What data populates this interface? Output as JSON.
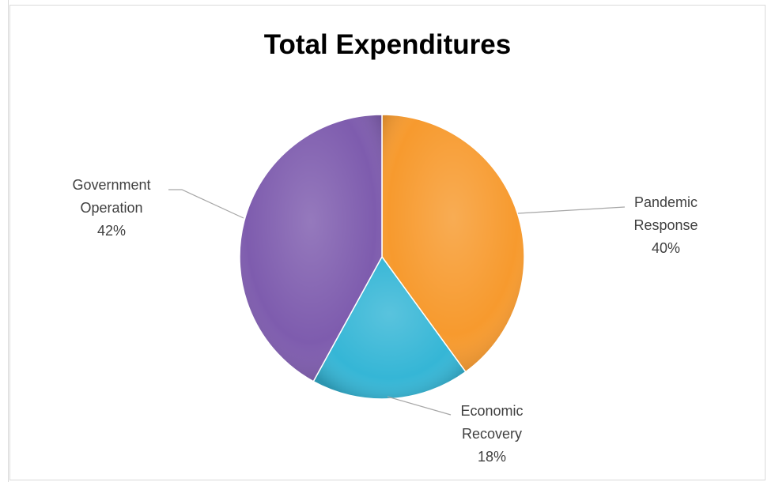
{
  "chart_data": {
    "type": "pie",
    "title": "Total Expenditures",
    "slices": [
      {
        "label_lines": [
          "Pandemic",
          "Response"
        ],
        "percent_label": "40%",
        "value": 40,
        "color": "#F79A2E"
      },
      {
        "label_lines": [
          "Economic",
          "Recovery"
        ],
        "percent_label": "18%",
        "value": 18,
        "color": "#35B6D6"
      },
      {
        "label_lines": [
          "Government",
          "Operation"
        ],
        "percent_label": "42%",
        "value": 42,
        "color": "#7E5CAE"
      }
    ],
    "start_angle_deg": 0,
    "direction": "clockwise",
    "legend": "none",
    "data_labels": "outside with leader lines"
  }
}
